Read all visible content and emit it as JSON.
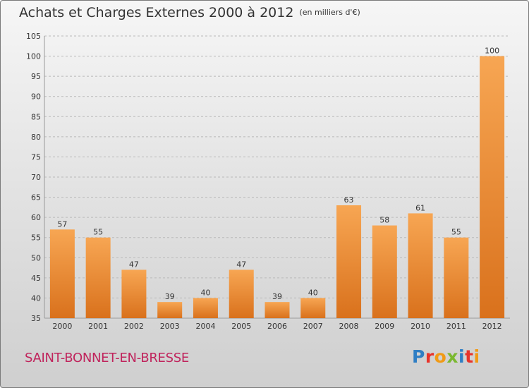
{
  "header": {
    "title": "Achats et Charges Externes 2000 à 2012",
    "unit": "(en milliers d'€)"
  },
  "footer": {
    "commune": "SAINT-BONNET-EN-BRESSE",
    "logo_letters": [
      {
        "char": "P",
        "color": "#2f7ec4"
      },
      {
        "char": "r",
        "color": "#e8332a"
      },
      {
        "char": "o",
        "color": "#f19a15"
      },
      {
        "char": "x",
        "color": "#7ab82f"
      },
      {
        "char": "i",
        "color": "#2f7ec4"
      },
      {
        "char": "t",
        "color": "#e8332a"
      },
      {
        "char": "i",
        "color": "#f19a15"
      }
    ]
  },
  "colors": {
    "bar_light": "#f7a653",
    "bar_dark": "#d9711c",
    "commune": "#c0245c"
  },
  "chart_data": {
    "type": "bar",
    "categories": [
      "2000",
      "2001",
      "2002",
      "2003",
      "2004",
      "2005",
      "2006",
      "2007",
      "2008",
      "2009",
      "2010",
      "2011",
      "2012"
    ],
    "values": [
      57,
      55,
      47,
      39,
      40,
      47,
      39,
      40,
      63,
      58,
      61,
      55,
      100
    ],
    "ylim": [
      35,
      105
    ],
    "yticks": [
      35,
      40,
      45,
      50,
      55,
      60,
      65,
      70,
      75,
      80,
      85,
      90,
      95,
      100,
      105
    ],
    "grid": true,
    "data_labels": true
  }
}
